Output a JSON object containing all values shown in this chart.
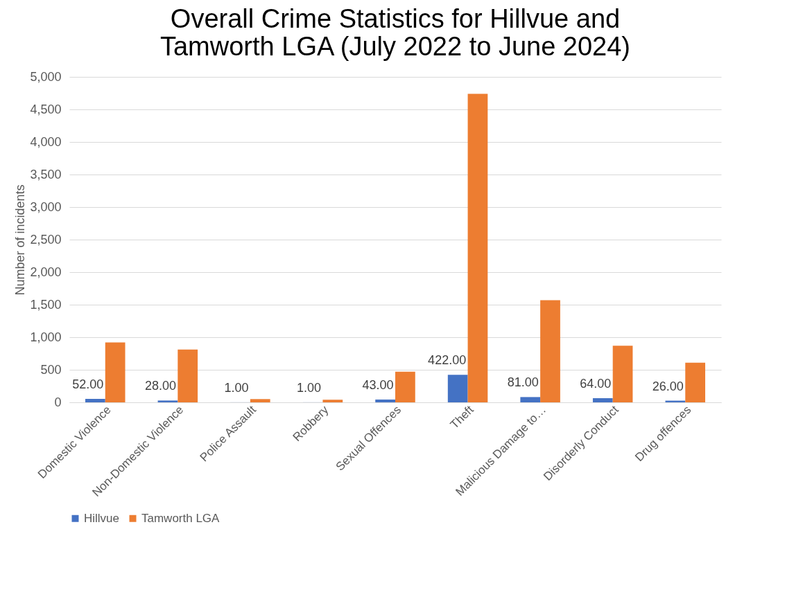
{
  "chart_data": {
    "type": "bar",
    "title": "Overall Crime Statistics for Hillvue and Tamworth LGA (July 2022 to June 2024)",
    "ylabel": "Number of incidents",
    "categories": [
      "Domestic Violence",
      "Non-Domestic Violence",
      "Police Assault",
      "Robbery",
      "Sexual Offences",
      "Theft",
      "Malicious Damage to…",
      "Disorderly Conduct",
      "Drug offences"
    ],
    "series": [
      {
        "name": "Hillvue",
        "color": "#4472c4",
        "values": [
          52,
          28,
          1,
          1,
          43,
          422,
          81,
          64,
          26
        ],
        "value_labels": [
          "52.00",
          "28.00",
          "1.00",
          "1.00",
          "43.00",
          "422.00",
          "81.00",
          "64.00",
          "26.00"
        ]
      },
      {
        "name": "Tamworth LGA",
        "color": "#ed7d31",
        "values": [
          920,
          810,
          50,
          40,
          470,
          4740,
          1570,
          870,
          610
        ]
      }
    ],
    "ylim": [
      0,
      5000
    ],
    "yticks": [
      0,
      500,
      {
        "value": 1000,
        "label": "1,000"
      },
      {
        "value": 1500,
        "label": "1,500"
      },
      {
        "value": 2000,
        "label": "2,000"
      },
      {
        "value": 2500,
        "label": "2,500"
      },
      {
        "value": 3000,
        "label": "3,000"
      },
      {
        "value": 3500,
        "label": "3,500"
      },
      {
        "value": 4000,
        "label": "4,000"
      },
      {
        "value": 4500,
        "label": "4,500"
      },
      {
        "value": 5000,
        "label": "5,000"
      }
    ],
    "grid": true,
    "legend": "bottom"
  }
}
